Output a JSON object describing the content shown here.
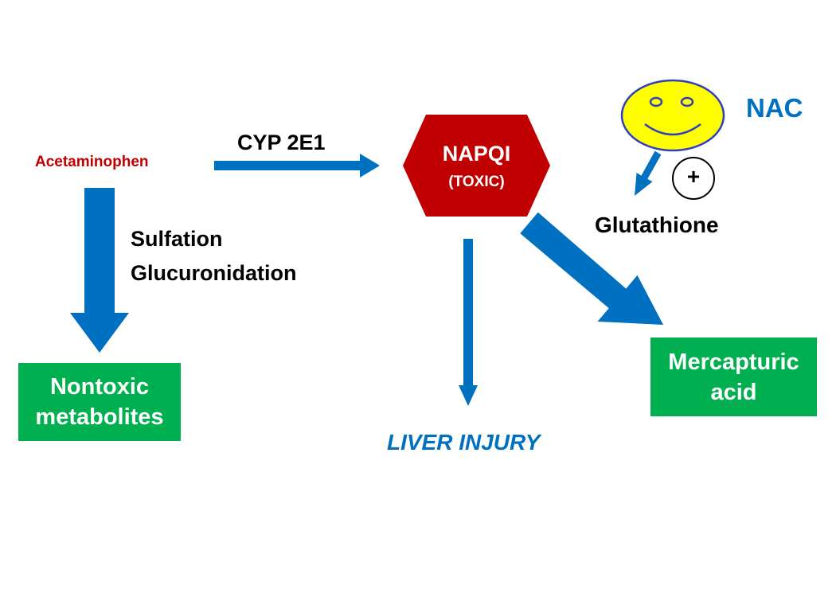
{
  "nodes": {
    "acetaminophen": "Acetaminophen",
    "napqi": "NAPQI",
    "napqi_note": "(TOXIC)",
    "nontoxic_line1": "Nontoxic",
    "nontoxic_line2": "metabolites",
    "mercapturic_line1": "Mercapturic",
    "mercapturic_line2": "acid",
    "liver_injury": "LIVER INJURY",
    "nac": "NAC",
    "glutathione": "Glutathione"
  },
  "edges": {
    "cyp": "CYP 2E1",
    "sulfation": "Sulfation",
    "glucuronidation": "Glucuronidation",
    "plus_sign": "+"
  },
  "colors": {
    "arrow": "#0070c0",
    "napqi_fill": "#c00000",
    "box_fill": "#00b050",
    "acetaminophen_text": "#c00000",
    "accent_blue": "#0070c0",
    "smiley_fill": "#ffff00",
    "smiley_stroke": "#2f3fbf"
  }
}
